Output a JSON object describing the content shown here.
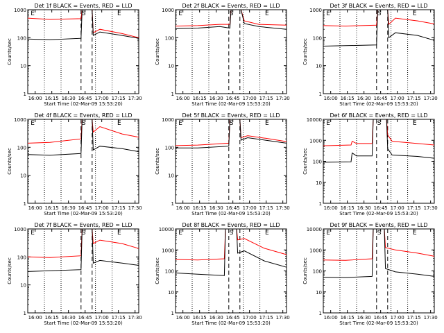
{
  "chart_data": [
    {
      "type": "line",
      "title": "Det 1f BLACK = Events, RED = LLD",
      "xlabel": "Start Time (02-Mar-09 15:53:20)",
      "ylabel": "Counts/sec",
      "x_ticks": [
        "16:00",
        "16:15",
        "16:30",
        "16:45",
        "17:00",
        "17:15",
        "17:30"
      ],
      "x_range_min": [
        0,
        100
      ],
      "y_log": true,
      "ylim": [
        1,
        1000
      ],
      "markers": [
        "E",
        "S",
        "E"
      ],
      "series": [
        {
          "color": "#ff0000",
          "values": [
            [
              0,
              500
            ],
            [
              20,
              450
            ],
            [
              48,
              480
            ],
            [
              49,
              1000
            ],
            [
              58,
              1000
            ],
            [
              59,
              150
            ],
            [
              65,
              200
            ],
            [
              85,
              140
            ],
            [
              100,
              100
            ]
          ]
        },
        {
          "color": "#000000",
          "values": [
            [
              0,
              90
            ],
            [
              20,
              85
            ],
            [
              48,
              95
            ],
            [
              49,
              1000
            ],
            [
              58,
              1000
            ],
            [
              59,
              120
            ],
            [
              65,
              160
            ],
            [
              85,
              120
            ],
            [
              100,
              95
            ]
          ]
        }
      ]
    },
    {
      "type": "line",
      "title": "Det 2f BLACK = Events, RED = LLD",
      "xlabel": "Start Time (02-Mar-09 15:53:20)",
      "ylabel": "Counts/sec",
      "x_ticks": [
        "16:00",
        "16:15",
        "16:30",
        "16:45",
        "17:00",
        "17:15",
        "17:30"
      ],
      "x_range_min": [
        0,
        100
      ],
      "y_log": true,
      "ylim": [
        1,
        1000
      ],
      "markers": [
        "E",
        "S",
        "E"
      ],
      "series": [
        {
          "color": "#ff0000",
          "values": [
            [
              0,
              260
            ],
            [
              20,
              270
            ],
            [
              40,
              300
            ],
            [
              49,
              300
            ],
            [
              50,
              1000
            ],
            [
              59,
              1000
            ],
            [
              62,
              400
            ],
            [
              75,
              300
            ],
            [
              100,
              280
            ]
          ]
        },
        {
          "color": "#000000",
          "values": [
            [
              0,
              210
            ],
            [
              20,
              220
            ],
            [
              40,
              250
            ],
            [
              49,
              220
            ],
            [
              50,
              1000
            ],
            [
              59,
              1000
            ],
            [
              62,
              320
            ],
            [
              75,
              250
            ],
            [
              100,
              200
            ]
          ]
        }
      ]
    },
    {
      "type": "line",
      "title": "Det 3f BLACK = Events, RED = LLD",
      "xlabel": "Start Time (02-Mar-09 15:53:20)",
      "ylabel": "Counts/sec",
      "x_ticks": [
        "16:00",
        "16:15",
        "16:30",
        "16:45",
        "17:00",
        "17:15",
        "17:30"
      ],
      "x_range_min": [
        0,
        100
      ],
      "y_log": true,
      "ylim": [
        1,
        1000
      ],
      "markers": [
        "E",
        "S",
        "E"
      ],
      "series": [
        {
          "color": "#ff0000",
          "values": [
            [
              0,
              270
            ],
            [
              20,
              260
            ],
            [
              48,
              280
            ],
            [
              49,
              1000
            ],
            [
              58,
              1000
            ],
            [
              59,
              300
            ],
            [
              65,
              500
            ],
            [
              85,
              400
            ],
            [
              100,
              310
            ]
          ]
        },
        {
          "color": "#000000",
          "values": [
            [
              0,
              50
            ],
            [
              20,
              52
            ],
            [
              48,
              55
            ],
            [
              49,
              1000
            ],
            [
              58,
              1000
            ],
            [
              59,
              100
            ],
            [
              65,
              150
            ],
            [
              85,
              120
            ],
            [
              100,
              80
            ]
          ]
        }
      ]
    },
    {
      "type": "line",
      "title": "Det 4f BLACK = Events, RED = LLD",
      "xlabel": "Start Time (02-Mar-09 15:53:20)",
      "ylabel": "Counts/sec",
      "x_ticks": [
        "16:00",
        "16:15",
        "16:30",
        "16:45",
        "17:00",
        "17:15",
        "17:30"
      ],
      "x_range_min": [
        0,
        100
      ],
      "y_log": true,
      "ylim": [
        1,
        1000
      ],
      "markers": [
        "E",
        "S",
        "E"
      ],
      "series": [
        {
          "color": "#ff0000",
          "values": [
            [
              0,
              140
            ],
            [
              20,
              150
            ],
            [
              48,
              200
            ],
            [
              49,
              1000
            ],
            [
              58,
              1000
            ],
            [
              59,
              350
            ],
            [
              65,
              550
            ],
            [
              85,
              300
            ],
            [
              100,
              230
            ]
          ]
        },
        {
          "color": "#000000",
          "values": [
            [
              0,
              55
            ],
            [
              20,
              52
            ],
            [
              48,
              60
            ],
            [
              49,
              1000
            ],
            [
              58,
              1000
            ],
            [
              59,
              80
            ],
            [
              65,
              110
            ],
            [
              85,
              90
            ],
            [
              100,
              70
            ]
          ]
        }
      ]
    },
    {
      "type": "line",
      "title": "Det 5f BLACK = Events, RED = LLD",
      "xlabel": "Start Time (02-Mar-09 15:53:20)",
      "ylabel": "Counts/sec",
      "x_ticks": [
        "16:00",
        "16:15",
        "16:30",
        "16:45",
        "17:00",
        "17:15",
        "17:30"
      ],
      "x_range_min": [
        0,
        100
      ],
      "y_log": true,
      "ylim": [
        1,
        1000
      ],
      "markers": [
        "E",
        "S",
        "E"
      ],
      "series": [
        {
          "color": "#ff0000",
          "values": [
            [
              0,
              115
            ],
            [
              20,
              120
            ],
            [
              48,
              140
            ],
            [
              49,
              1000
            ],
            [
              58,
              1000
            ],
            [
              59,
              220
            ],
            [
              65,
              260
            ],
            [
              85,
              200
            ],
            [
              100,
              160
            ]
          ]
        },
        {
          "color": "#000000",
          "values": [
            [
              0,
              95
            ],
            [
              20,
              95
            ],
            [
              48,
              110
            ],
            [
              49,
              1000
            ],
            [
              58,
              1000
            ],
            [
              59,
              180
            ],
            [
              65,
              220
            ],
            [
              85,
              170
            ],
            [
              100,
              140
            ]
          ]
        }
      ]
    },
    {
      "type": "line",
      "title": "Det 6f BLACK = Events, RED = LLD",
      "xlabel": "Start Time (02-Mar-09 15:53:20)",
      "ylabel": "Counts/sec",
      "x_ticks": [
        "16:00",
        "16:15",
        "16:30",
        "16:45",
        "17:00",
        "17:15",
        "17:30"
      ],
      "x_range_min": [
        0,
        100
      ],
      "y_log": true,
      "ylim": [
        1,
        10000
      ],
      "markers": [
        "E",
        "S",
        "E"
      ],
      "series": [
        {
          "color": "#ff0000",
          "values": [
            [
              0,
              550
            ],
            [
              25,
              600
            ],
            [
              26,
              900
            ],
            [
              30,
              700
            ],
            [
              44,
              700
            ],
            [
              45,
              10000
            ],
            [
              57,
              10000
            ],
            [
              58,
              1800
            ],
            [
              62,
              900
            ],
            [
              85,
              700
            ],
            [
              100,
              600
            ]
          ]
        },
        {
          "color": "#000000",
          "values": [
            [
              0,
              90
            ],
            [
              25,
              95
            ],
            [
              26,
              250
            ],
            [
              30,
              180
            ],
            [
              44,
              180
            ],
            [
              45,
              10000
            ],
            [
              57,
              10000
            ],
            [
              58,
              400
            ],
            [
              62,
              200
            ],
            [
              85,
              170
            ],
            [
              100,
              140
            ]
          ]
        }
      ]
    },
    {
      "type": "line",
      "title": "Det 7f BLACK = Events, RED = LLD",
      "xlabel": "Start Time (02-Mar-09 15:53:20)",
      "ylabel": "Counts/sec",
      "x_ticks": [
        "16:00",
        "16:15",
        "16:30",
        "16:45",
        "17:00",
        "17:15",
        "17:30"
      ],
      "x_range_min": [
        0,
        100
      ],
      "y_log": true,
      "ylim": [
        1,
        1000
      ],
      "markers": [
        "E",
        "S",
        "E"
      ],
      "series": [
        {
          "color": "#ff0000",
          "values": [
            [
              0,
              100
            ],
            [
              20,
              95
            ],
            [
              48,
              110
            ],
            [
              49,
              1000
            ],
            [
              58,
              1000
            ],
            [
              59,
              300
            ],
            [
              65,
              400
            ],
            [
              85,
              300
            ],
            [
              100,
              200
            ]
          ]
        },
        {
          "color": "#000000",
          "values": [
            [
              0,
              30
            ],
            [
              20,
              32
            ],
            [
              48,
              35
            ],
            [
              49,
              1000
            ],
            [
              58,
              1000
            ],
            [
              59,
              60
            ],
            [
              65,
              75
            ],
            [
              85,
              60
            ],
            [
              100,
              50
            ]
          ]
        }
      ]
    },
    {
      "type": "line",
      "title": "Det 8f BLACK = Events, RED = LLD",
      "xlabel": "Start Time (02-Mar-09 15:53:20)",
      "ylabel": "Counts/sec",
      "x_ticks": [
        "16:00",
        "16:15",
        "16:30",
        "16:45",
        "17:00",
        "17:15",
        "17:30"
      ],
      "x_range_min": [
        0,
        100
      ],
      "y_log": true,
      "ylim": [
        1,
        10000
      ],
      "markers": [
        "E",
        "S",
        "E"
      ],
      "series": [
        {
          "color": "#ff0000",
          "values": [
            [
              0,
              350
            ],
            [
              20,
              330
            ],
            [
              44,
              380
            ],
            [
              45,
              10000
            ],
            [
              55,
              10000
            ],
            [
              56,
              3000
            ],
            [
              62,
              3500
            ],
            [
              80,
              1200
            ],
            [
              100,
              600
            ]
          ]
        },
        {
          "color": "#000000",
          "values": [
            [
              0,
              80
            ],
            [
              20,
              70
            ],
            [
              44,
              60
            ],
            [
              45,
              10000
            ],
            [
              55,
              10000
            ],
            [
              56,
              700
            ],
            [
              62,
              900
            ],
            [
              80,
              300
            ],
            [
              100,
              150
            ]
          ]
        }
      ]
    },
    {
      "type": "line",
      "title": "Det 9f BLACK = Events, RED = LLD",
      "xlabel": "Start Time (02-Mar-09 15:53:20)",
      "ylabel": "Counts/sec",
      "x_ticks": [
        "16:00",
        "16:15",
        "16:30",
        "16:45",
        "17:00",
        "17:15",
        "17:30"
      ],
      "x_range_min": [
        0,
        100
      ],
      "y_log": true,
      "ylim": [
        1,
        10000
      ],
      "markers": [
        "E",
        "S",
        "E"
      ],
      "series": [
        {
          "color": "#ff0000",
          "values": [
            [
              0,
              330
            ],
            [
              20,
              320
            ],
            [
              44,
              380
            ],
            [
              45,
              10000
            ],
            [
              55,
              10000
            ],
            [
              56,
              1300
            ],
            [
              65,
              1000
            ],
            [
              85,
              700
            ],
            [
              100,
              500
            ]
          ]
        },
        {
          "color": "#000000",
          "values": [
            [
              0,
              50
            ],
            [
              20,
              48
            ],
            [
              44,
              55
            ],
            [
              45,
              10000
            ],
            [
              55,
              10000
            ],
            [
              56,
              130
            ],
            [
              65,
              90
            ],
            [
              85,
              70
            ],
            [
              100,
              55
            ]
          ]
        }
      ]
    }
  ]
}
